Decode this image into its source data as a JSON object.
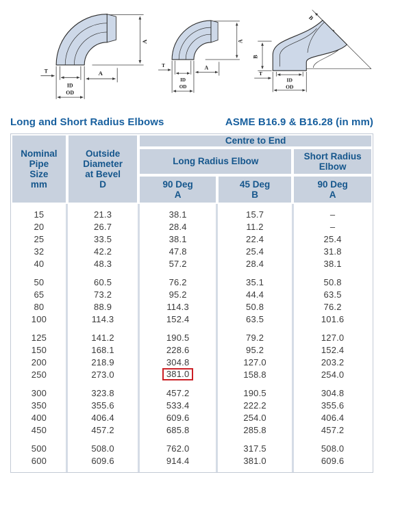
{
  "title": {
    "left": "Long and Short Radius Elbows",
    "right": "ASME B16.9 & B16.28 (in mm)"
  },
  "colors": {
    "title_text": "#175f9e",
    "header_bg": "#c8d1de",
    "header_text": "#15568c",
    "body_text": "#3a3a3a",
    "column_separator": "#d5dce6",
    "highlight_box": "#cb2026",
    "diagram_fill": "#cdd8e8",
    "diagram_outline": "#2e2e2e"
  },
  "diagrams": [
    {
      "name": "90-deg-long-radius-elbow",
      "labels": {
        "dim_vertical": "A",
        "dim_horizontal": "A",
        "wall_thickness": "T",
        "inner_diameter": "ID",
        "outer_diameter": "OD"
      }
    },
    {
      "name": "90-deg-short-radius-elbow",
      "labels": {
        "dim_vertical": "A",
        "dim_horizontal": "A",
        "wall_thickness": "T",
        "inner_diameter": "ID",
        "outer_diameter": "OD"
      }
    },
    {
      "name": "45-deg-elbow",
      "labels": {
        "dim_diagonal": "B",
        "dim_vertical": "B",
        "wall_thickness": "T",
        "inner_diameter": "ID",
        "outer_diameter": "OD"
      }
    }
  ],
  "table": {
    "header": {
      "col_nominal": "Nominal\nPipe\nSize\nmm",
      "col_od": "Outside\nDiameter\nat Bevel\nD",
      "centre_to_end": "Centre to End",
      "long_radius": "Long Radius Elbow",
      "short_radius": "Short Radius\nElbow",
      "sub_90_lr": "90 Deg\nA",
      "sub_45_lr": "45 Deg\nB",
      "sub_90_sr": "90 Deg\nA"
    },
    "groups": [
      [
        [
          "15",
          "21.3",
          "38.1",
          "15.7",
          "–"
        ],
        [
          "20",
          "26.7",
          "28.4",
          "11.2",
          "–"
        ],
        [
          "25",
          "33.5",
          "38.1",
          "22.4",
          "25.4"
        ],
        [
          "32",
          "42.2",
          "47.8",
          "25.4",
          "31.8"
        ],
        [
          "40",
          "48.3",
          "57.2",
          "28.4",
          "38.1"
        ]
      ],
      [
        [
          "50",
          "60.5",
          "76.2",
          "35.1",
          "50.8"
        ],
        [
          "65",
          "73.2",
          "95.2",
          "44.4",
          "63.5"
        ],
        [
          "80",
          "88.9",
          "114.3",
          "50.8",
          "76.2"
        ],
        [
          "100",
          "114.3",
          "152.4",
          "63.5",
          "101.6"
        ]
      ],
      [
        [
          "125",
          "141.2",
          "190.5",
          "79.2",
          "127.0"
        ],
        [
          "150",
          "168.1",
          "228.6",
          "95.2",
          "152.4"
        ],
        [
          "200",
          "218.9",
          "304.8",
          "127.0",
          "203.2"
        ],
        [
          "250",
          "273.0",
          "381.0",
          "158.8",
          "254.0"
        ]
      ],
      [
        [
          "300",
          "323.8",
          "457.2",
          "190.5",
          "304.8"
        ],
        [
          "350",
          "355.6",
          "533.4",
          "222.2",
          "355.6"
        ],
        [
          "400",
          "406.4",
          "609.6",
          "254.0",
          "406.4"
        ],
        [
          "450",
          "457.2",
          "685.8",
          "285.8",
          "457.2"
        ]
      ],
      [
        [
          "500",
          "508.0",
          "762.0",
          "317.5",
          "508.0"
        ],
        [
          "600",
          "609.6",
          "914.4",
          "381.0",
          "609.6"
        ]
      ]
    ],
    "highlight": {
      "group": 2,
      "row": 3,
      "col": 2,
      "value": "381.0"
    }
  }
}
